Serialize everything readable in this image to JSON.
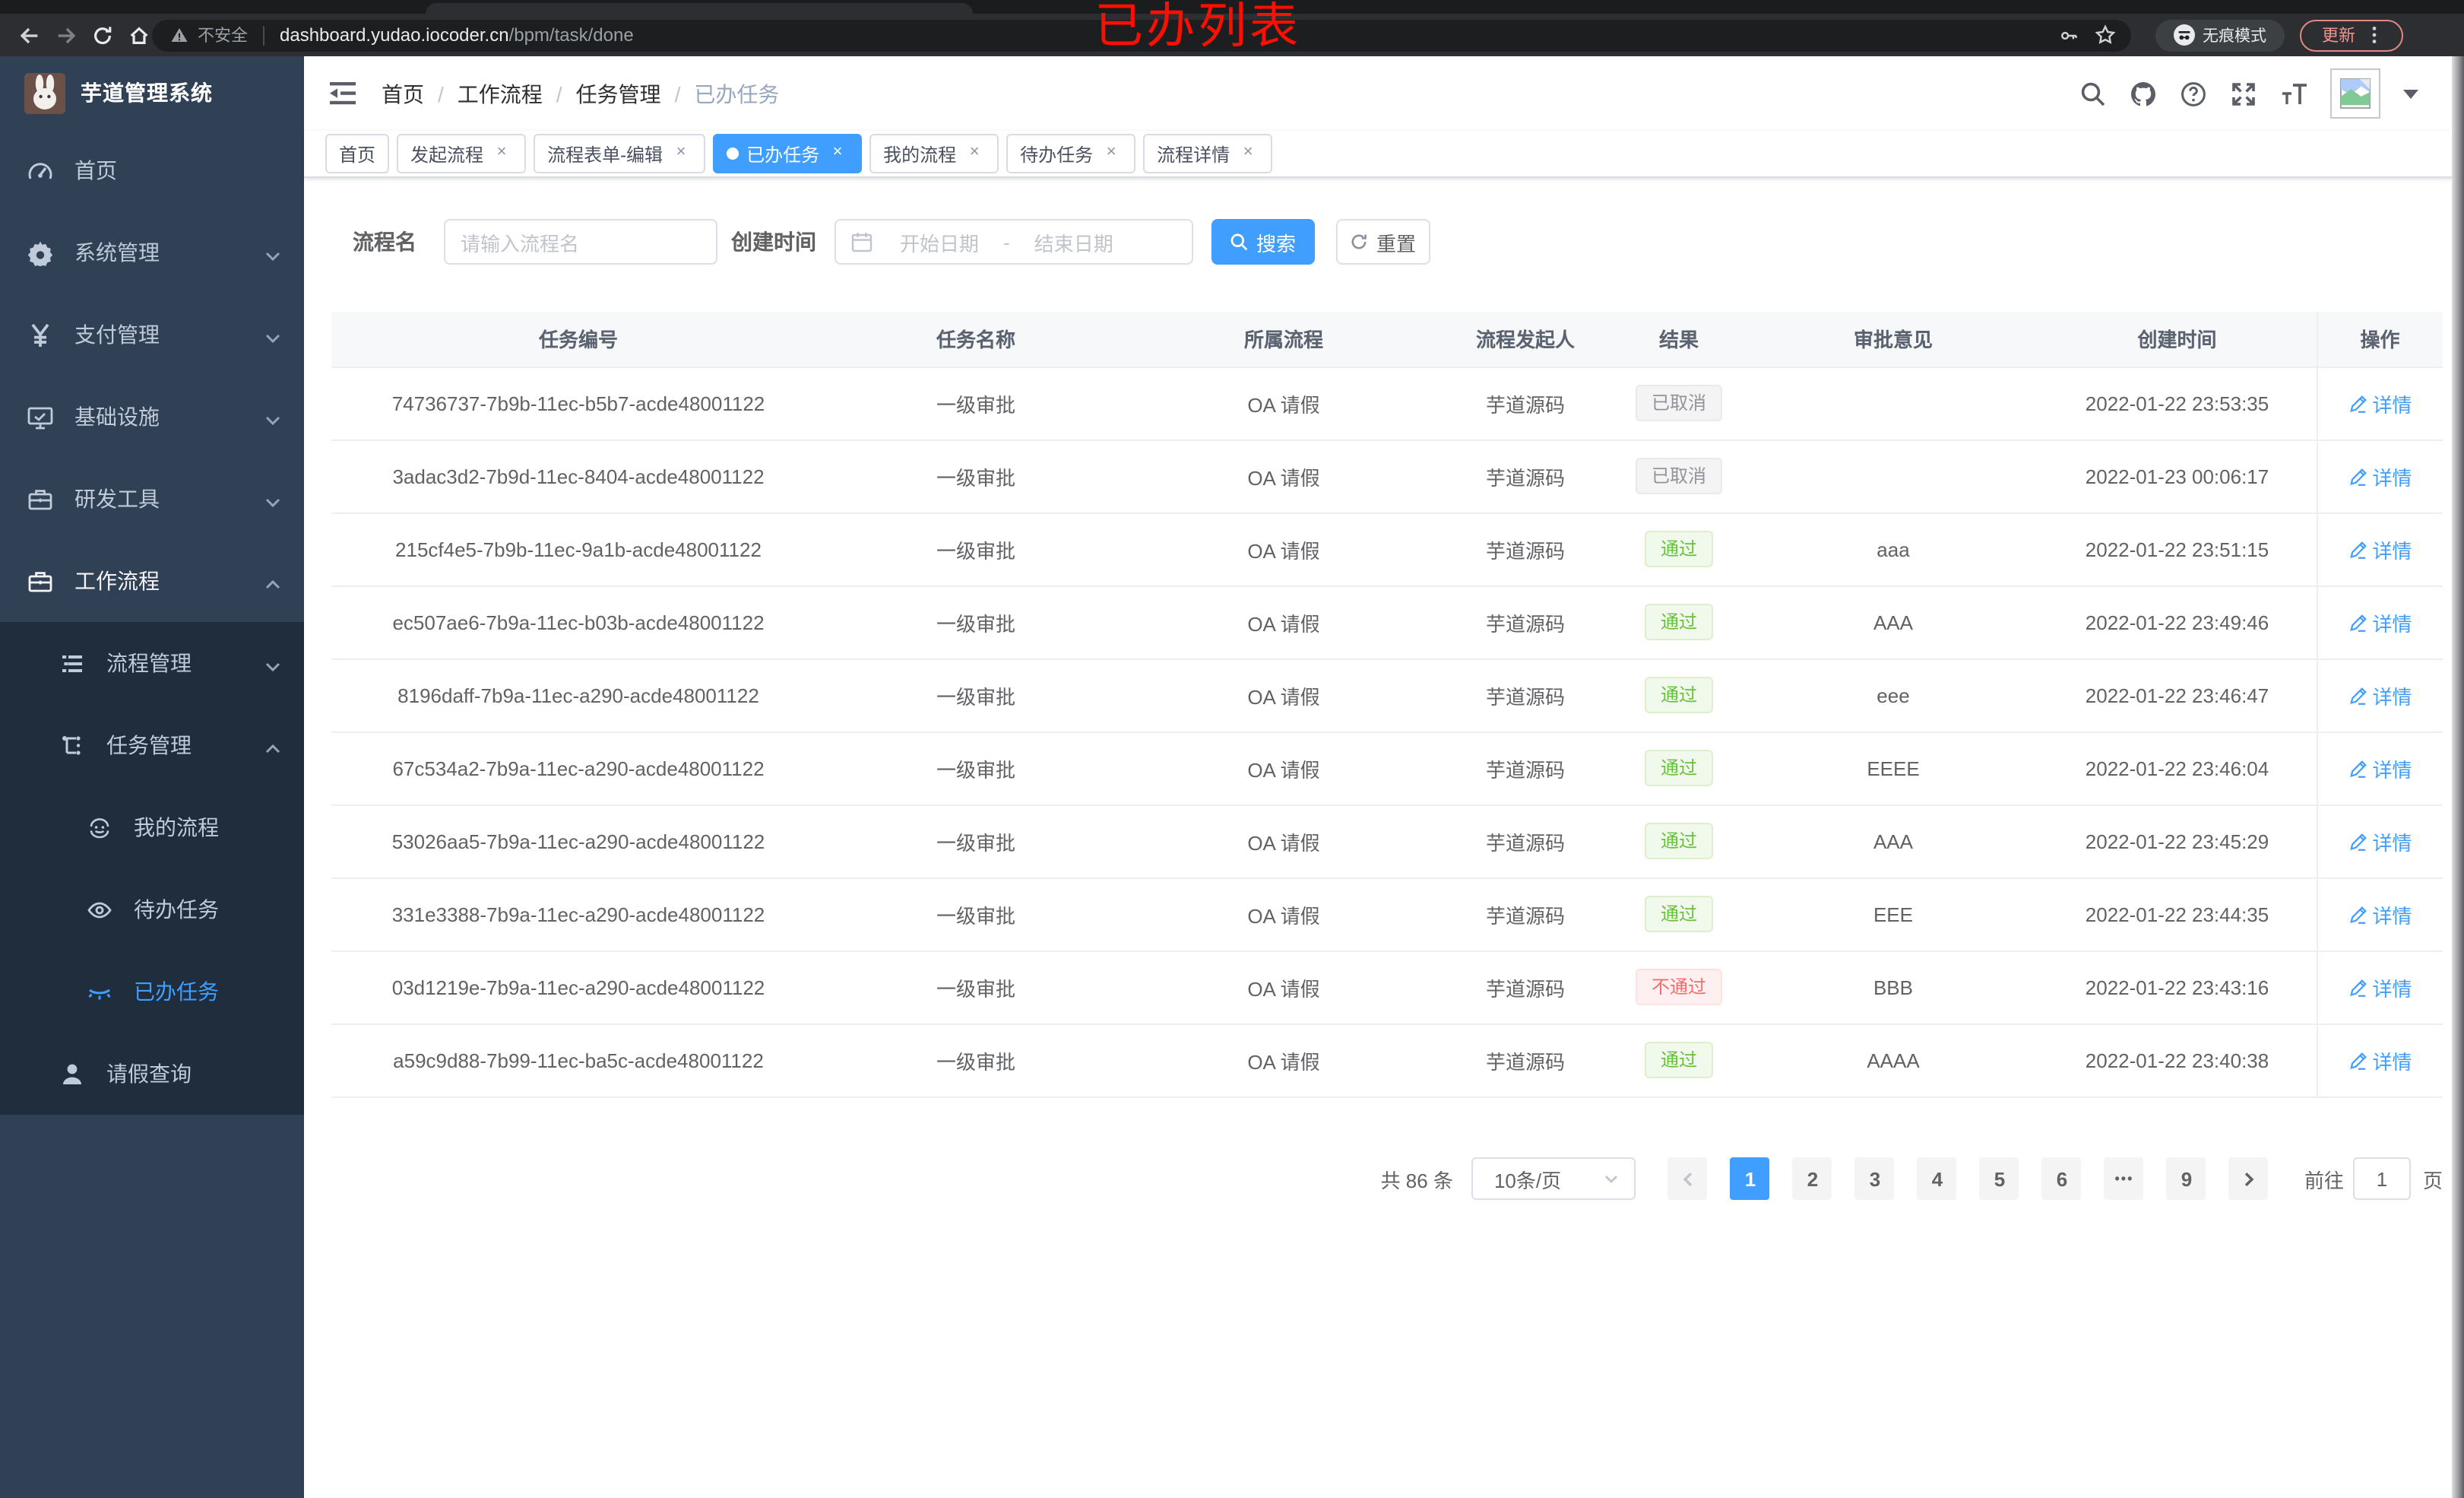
{
  "chrome": {
    "security": "不安全",
    "url_host": "dashboard.yudao.iocoder.cn",
    "url_path": "/bpm/task/done",
    "incognito": "无痕模式",
    "update": "更新"
  },
  "annotation": "已办列表",
  "sidebar": {
    "title": "芋道管理系统",
    "menu": [
      {
        "label": "首页",
        "icon": "dashboard-icon",
        "level": 0
      },
      {
        "label": "系统管理",
        "icon": "gear-icon",
        "level": 0,
        "chevron": "down"
      },
      {
        "label": "支付管理",
        "icon": "yen-icon",
        "level": 0,
        "chevron": "down"
      },
      {
        "label": "基础设施",
        "icon": "monitor-icon",
        "level": 0,
        "chevron": "down"
      },
      {
        "label": "研发工具",
        "icon": "toolbox-icon",
        "level": 0,
        "chevron": "down"
      },
      {
        "label": "工作流程",
        "icon": "briefcase-icon",
        "level": 0,
        "chevron": "up",
        "bright": true
      },
      {
        "label": "流程管理",
        "icon": "list-icon",
        "level": 1,
        "chevron": "down",
        "sub": true
      },
      {
        "label": "任务管理",
        "icon": "flow-icon",
        "level": 1,
        "chevron": "up",
        "sub": true
      },
      {
        "label": "我的流程",
        "icon": "robot-icon",
        "level": 2,
        "sub": true
      },
      {
        "label": "待办任务",
        "icon": "eye-icon",
        "level": 2,
        "sub": true
      },
      {
        "label": "已办任务",
        "icon": "eye-closed-icon",
        "level": 2,
        "sub": true,
        "active": true
      },
      {
        "label": "请假查询",
        "icon": "user-icon",
        "level": 1,
        "sub": true
      }
    ]
  },
  "header": {
    "breadcrumb": [
      "首页",
      "工作流程",
      "任务管理",
      "已办任务"
    ]
  },
  "tabs": [
    {
      "label": "首页",
      "closable": false
    },
    {
      "label": "发起流程",
      "closable": true
    },
    {
      "label": "流程表单-编辑",
      "closable": true
    },
    {
      "label": "已办任务",
      "closable": true,
      "active": true
    },
    {
      "label": "我的流程",
      "closable": true
    },
    {
      "label": "待办任务",
      "closable": true
    },
    {
      "label": "流程详情",
      "closable": true
    }
  ],
  "filter": {
    "name_label": "流程名",
    "name_placeholder": "请输入流程名",
    "date_label": "创建时间",
    "date_start_placeholder": "开始日期",
    "date_separator": "-",
    "date_end_placeholder": "结束日期",
    "search_label": "搜索",
    "reset_label": "重置"
  },
  "table": {
    "columns": [
      "任务编号",
      "任务名称",
      "所属流程",
      "流程发起人",
      "结果",
      "审批意见",
      "创建时间",
      "操作"
    ],
    "action_label": "详情",
    "rows": [
      {
        "id": "74736737-7b9b-11ec-b5b7-acde48001122",
        "name": "一级审批",
        "process": "OA 请假",
        "starter": "芋道源码",
        "result": "已取消",
        "result_type": "info",
        "comment": "",
        "created": "2022-01-22 23:53:35"
      },
      {
        "id": "3adac3d2-7b9d-11ec-8404-acde48001122",
        "name": "一级审批",
        "process": "OA 请假",
        "starter": "芋道源码",
        "result": "已取消",
        "result_type": "info",
        "comment": "",
        "created": "2022-01-23 00:06:17"
      },
      {
        "id": "215cf4e5-7b9b-11ec-9a1b-acde48001122",
        "name": "一级审批",
        "process": "OA 请假",
        "starter": "芋道源码",
        "result": "通过",
        "result_type": "success",
        "comment": "aaa",
        "created": "2022-01-22 23:51:15"
      },
      {
        "id": "ec507ae6-7b9a-11ec-b03b-acde48001122",
        "name": "一级审批",
        "process": "OA 请假",
        "starter": "芋道源码",
        "result": "通过",
        "result_type": "success",
        "comment": "AAA",
        "created": "2022-01-22 23:49:46"
      },
      {
        "id": "8196daff-7b9a-11ec-a290-acde48001122",
        "name": "一级审批",
        "process": "OA 请假",
        "starter": "芋道源码",
        "result": "通过",
        "result_type": "success",
        "comment": "eee",
        "created": "2022-01-22 23:46:47"
      },
      {
        "id": "67c534a2-7b9a-11ec-a290-acde48001122",
        "name": "一级审批",
        "process": "OA 请假",
        "starter": "芋道源码",
        "result": "通过",
        "result_type": "success",
        "comment": "EEEE",
        "created": "2022-01-22 23:46:04"
      },
      {
        "id": "53026aa5-7b9a-11ec-a290-acde48001122",
        "name": "一级审批",
        "process": "OA 请假",
        "starter": "芋道源码",
        "result": "通过",
        "result_type": "success",
        "comment": "AAA",
        "created": "2022-01-22 23:45:29"
      },
      {
        "id": "331e3388-7b9a-11ec-a290-acde48001122",
        "name": "一级审批",
        "process": "OA 请假",
        "starter": "芋道源码",
        "result": "通过",
        "result_type": "success",
        "comment": "EEE",
        "created": "2022-01-22 23:44:35"
      },
      {
        "id": "03d1219e-7b9a-11ec-a290-acde48001122",
        "name": "一级审批",
        "process": "OA 请假",
        "starter": "芋道源码",
        "result": "不通过",
        "result_type": "danger",
        "comment": "BBB",
        "created": "2022-01-22 23:43:16"
      },
      {
        "id": "a59c9d88-7b99-11ec-ba5c-acde48001122",
        "name": "一级审批",
        "process": "OA 请假",
        "starter": "芋道源码",
        "result": "通过",
        "result_type": "success",
        "comment": "AAAA",
        "created": "2022-01-22 23:40:38"
      }
    ]
  },
  "pagination": {
    "total": "共 86 条",
    "page_size": "10条/页",
    "pages": [
      "1",
      "2",
      "3",
      "4",
      "5",
      "6",
      "•••",
      "9"
    ],
    "active": "1",
    "goto": "前往",
    "goto_value": "1",
    "unit": "页"
  },
  "colors": {
    "accent": "#409eff",
    "success": "#67c23a",
    "danger": "#f56c6c",
    "info": "#909399",
    "sidebar_bg": "#304156",
    "submenu_bg": "#1f2d3d"
  }
}
